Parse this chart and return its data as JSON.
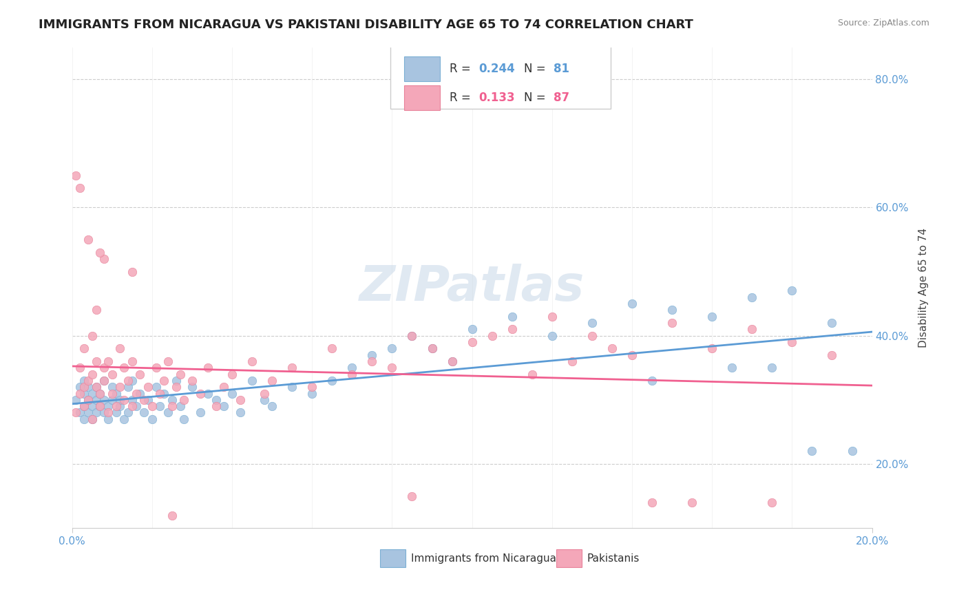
{
  "title": "IMMIGRANTS FROM NICARAGUA VS PAKISTANI DISABILITY AGE 65 TO 74 CORRELATION CHART",
  "source_text": "Source: ZipAtlas.com",
  "xlabel": "",
  "ylabel": "Disability Age 65 to 74",
  "xlim": [
    0.0,
    0.2
  ],
  "ylim": [
    0.1,
    0.85
  ],
  "x_ticks": [
    0.0,
    0.2
  ],
  "x_tick_labels": [
    "0.0%",
    "20.0%"
  ],
  "y_ticks": [
    0.2,
    0.4,
    0.6,
    0.8
  ],
  "y_tick_labels": [
    "20.0%",
    "40.0%",
    "60.0%",
    "80.0%"
  ],
  "watermark": "ZIPatlas",
  "legend_R1": "0.244",
  "legend_N1": "81",
  "legend_R2": "0.133",
  "legend_N2": "87",
  "color_blue": "#a8c4e0",
  "color_pink": "#f4a7b9",
  "line_color_blue": "#5b9bd5",
  "line_color_pink": "#f06090",
  "dot_edge_blue": "#7bafd4",
  "dot_edge_pink": "#e8829a",
  "background_color": "#ffffff",
  "grid_color": "#cccccc",
  "series1_x": [
    0.001,
    0.002,
    0.002,
    0.003,
    0.003,
    0.003,
    0.003,
    0.004,
    0.004,
    0.004,
    0.005,
    0.005,
    0.005,
    0.006,
    0.006,
    0.006,
    0.007,
    0.007,
    0.008,
    0.008,
    0.008,
    0.009,
    0.009,
    0.01,
    0.01,
    0.011,
    0.011,
    0.012,
    0.012,
    0.013,
    0.014,
    0.014,
    0.015,
    0.015,
    0.016,
    0.017,
    0.018,
    0.019,
    0.02,
    0.021,
    0.022,
    0.023,
    0.024,
    0.025,
    0.026,
    0.027,
    0.028,
    0.03,
    0.032,
    0.034,
    0.036,
    0.038,
    0.04,
    0.042,
    0.045,
    0.048,
    0.05,
    0.055,
    0.06,
    0.065,
    0.07,
    0.075,
    0.08,
    0.085,
    0.09,
    0.095,
    0.1,
    0.11,
    0.12,
    0.13,
    0.14,
    0.15,
    0.16,
    0.17,
    0.18,
    0.19,
    0.185,
    0.195,
    0.175,
    0.165,
    0.145
  ],
  "series1_y": [
    0.3,
    0.28,
    0.32,
    0.29,
    0.31,
    0.27,
    0.33,
    0.28,
    0.3,
    0.32,
    0.29,
    0.31,
    0.27,
    0.3,
    0.28,
    0.32,
    0.29,
    0.31,
    0.28,
    0.3,
    0.33,
    0.29,
    0.27,
    0.3,
    0.32,
    0.28,
    0.31,
    0.29,
    0.3,
    0.27,
    0.32,
    0.28,
    0.3,
    0.33,
    0.29,
    0.31,
    0.28,
    0.3,
    0.27,
    0.32,
    0.29,
    0.31,
    0.28,
    0.3,
    0.33,
    0.29,
    0.27,
    0.32,
    0.28,
    0.31,
    0.3,
    0.29,
    0.31,
    0.28,
    0.33,
    0.3,
    0.29,
    0.32,
    0.31,
    0.33,
    0.35,
    0.37,
    0.38,
    0.4,
    0.38,
    0.36,
    0.41,
    0.43,
    0.4,
    0.42,
    0.45,
    0.44,
    0.43,
    0.46,
    0.47,
    0.42,
    0.22,
    0.22,
    0.35,
    0.35,
    0.33
  ],
  "series2_x": [
    0.001,
    0.002,
    0.002,
    0.003,
    0.003,
    0.003,
    0.004,
    0.004,
    0.005,
    0.005,
    0.005,
    0.006,
    0.006,
    0.007,
    0.007,
    0.008,
    0.008,
    0.009,
    0.009,
    0.01,
    0.01,
    0.011,
    0.012,
    0.012,
    0.013,
    0.013,
    0.014,
    0.015,
    0.015,
    0.016,
    0.017,
    0.018,
    0.019,
    0.02,
    0.021,
    0.022,
    0.023,
    0.024,
    0.025,
    0.026,
    0.027,
    0.028,
    0.03,
    0.032,
    0.034,
    0.036,
    0.038,
    0.04,
    0.042,
    0.045,
    0.048,
    0.05,
    0.055,
    0.06,
    0.065,
    0.07,
    0.075,
    0.08,
    0.085,
    0.09,
    0.095,
    0.1,
    0.11,
    0.12,
    0.13,
    0.14,
    0.15,
    0.16,
    0.17,
    0.18,
    0.19,
    0.175,
    0.155,
    0.145,
    0.135,
    0.125,
    0.115,
    0.105,
    0.085,
    0.025,
    0.015,
    0.008,
    0.004,
    0.002,
    0.001,
    0.006,
    0.007
  ],
  "series2_y": [
    0.28,
    0.31,
    0.35,
    0.29,
    0.32,
    0.38,
    0.3,
    0.33,
    0.27,
    0.34,
    0.4,
    0.32,
    0.36,
    0.31,
    0.29,
    0.35,
    0.33,
    0.28,
    0.36,
    0.31,
    0.34,
    0.29,
    0.32,
    0.38,
    0.3,
    0.35,
    0.33,
    0.29,
    0.36,
    0.31,
    0.34,
    0.3,
    0.32,
    0.29,
    0.35,
    0.31,
    0.33,
    0.36,
    0.29,
    0.32,
    0.34,
    0.3,
    0.33,
    0.31,
    0.35,
    0.29,
    0.32,
    0.34,
    0.3,
    0.36,
    0.31,
    0.33,
    0.35,
    0.32,
    0.38,
    0.34,
    0.36,
    0.35,
    0.4,
    0.38,
    0.36,
    0.39,
    0.41,
    0.43,
    0.4,
    0.37,
    0.42,
    0.38,
    0.41,
    0.39,
    0.37,
    0.14,
    0.14,
    0.14,
    0.38,
    0.36,
    0.34,
    0.4,
    0.15,
    0.12,
    0.5,
    0.52,
    0.55,
    0.63,
    0.65,
    0.44,
    0.53
  ]
}
